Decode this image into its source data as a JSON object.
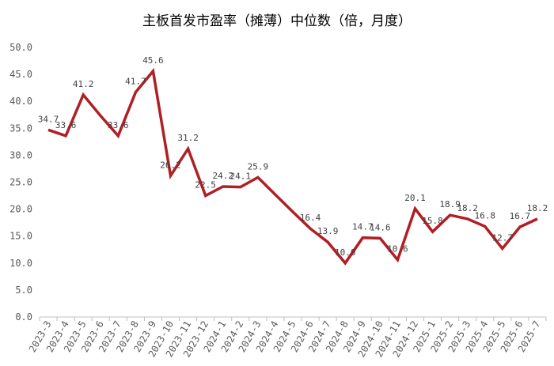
{
  "chart_data": {
    "type": "line",
    "title": "主板首发市盈率（摊薄）中位数（倍，月度）",
    "xlabel": "",
    "ylabel": "",
    "ylim": [
      0,
      50
    ],
    "yticks": [
      "0.0",
      "5.0",
      "10.0",
      "15.0",
      "20.0",
      "25.0",
      "30.0",
      "35.0",
      "40.0",
      "45.0",
      "50.0"
    ],
    "grid": false,
    "legend": "none",
    "categories": [
      "2023-3",
      "2023-4",
      "2023-5",
      "2023-6",
      "2023-7",
      "2023-8",
      "2023-9",
      "2023-10",
      "2023-11",
      "2023-12",
      "2024-1",
      "2024-2",
      "2024-3",
      "2024-4",
      "2024-5",
      "2024-6",
      "2024-7",
      "2024-8",
      "2024-9",
      "2024-10",
      "2024-11",
      "2024-12",
      "2025-1",
      "2025-2",
      "2025-3",
      "2025-4",
      "2025-5",
      "2025-6",
      "2025-7"
    ],
    "series": [
      {
        "color": "#B01F24",
        "values": [
          34.7,
          33.6,
          41.2,
          37.3,
          33.6,
          41.7,
          45.6,
          26.2,
          31.2,
          22.5,
          24.2,
          24.1,
          25.9,
          22.7,
          19.5,
          16.4,
          13.9,
          10.0,
          14.7,
          14.6,
          10.6,
          20.1,
          15.8,
          18.9,
          18.2,
          16.8,
          12.7,
          16.7,
          18.2
        ],
        "labels": [
          "34.7",
          "33.6",
          "41.2",
          "",
          "33.6",
          "41.7",
          "45.6",
          "26.2",
          "31.2",
          "22.5",
          "24.2",
          "24.1",
          "25.9",
          "",
          "",
          "16.4",
          "13.9",
          "10.0",
          "14.7",
          "14.6",
          "10.6",
          "20.1",
          "15.8",
          "18.9",
          "18.2",
          "16.8",
          "12.7",
          "16.7",
          "18.2"
        ]
      }
    ]
  }
}
